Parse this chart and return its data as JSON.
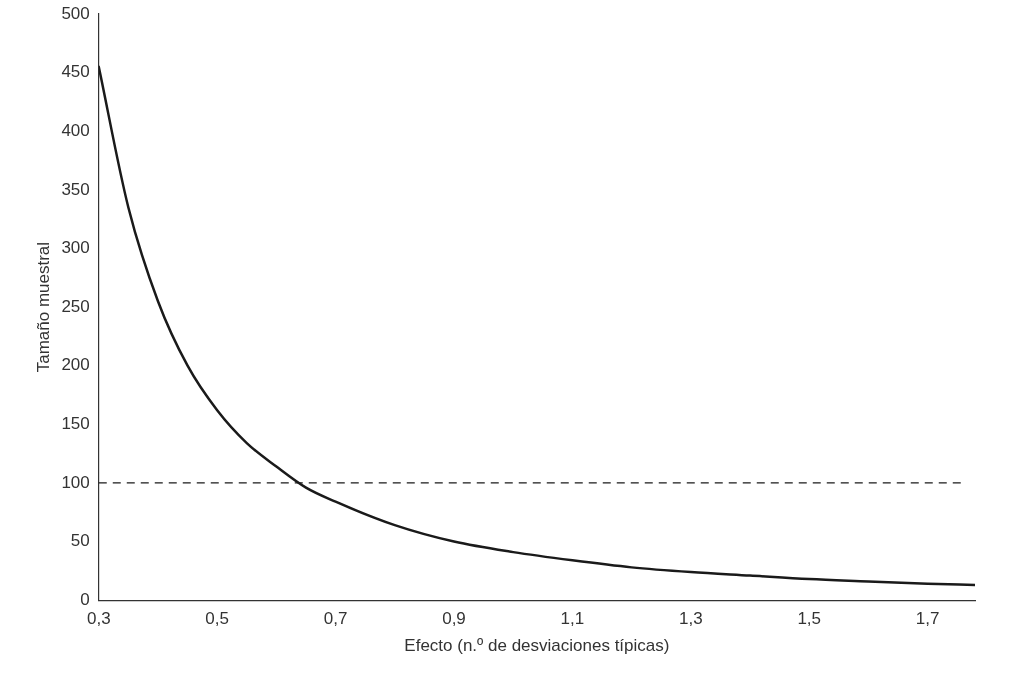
{
  "chart_data": {
    "type": "line",
    "xlabel": "Efecto (n.º de desviaciones típicas)",
    "ylabel": "Tamaño muestral",
    "x": [
      0.3,
      0.35,
      0.4,
      0.45,
      0.5,
      0.55,
      0.6,
      0.65,
      0.7,
      0.8,
      0.9,
      1.0,
      1.1,
      1.2,
      1.3,
      1.4,
      1.5,
      1.6,
      1.7,
      1.78
    ],
    "series": [
      {
        "color": "#1a1a1a",
        "values": [
          455,
          335,
          255,
          200,
          162,
          134,
          114,
          96,
          84,
          64,
          50,
          41,
          34,
          28,
          24,
          21,
          18,
          16,
          14,
          13
        ]
      }
    ],
    "xlim": [
      0.3,
      1.78
    ],
    "xticks": [
      {
        "value": 0.3,
        "label": "0,3"
      },
      {
        "value": 0.5,
        "label": "0,5"
      },
      {
        "value": 0.7,
        "label": "0,7"
      },
      {
        "value": 0.9,
        "label": "0,9"
      },
      {
        "value": 1.1,
        "label": "1,1"
      },
      {
        "value": 1.3,
        "label": "1,3"
      },
      {
        "value": 1.5,
        "label": "1,5"
      },
      {
        "value": 1.7,
        "label": "1,7"
      }
    ],
    "ylim": [
      0,
      500
    ],
    "yticks": [
      0,
      50,
      100,
      150,
      200,
      250,
      300,
      350,
      400,
      450,
      500
    ],
    "ref_lines": [
      {
        "axis": "y",
        "value": 100,
        "color": "#1a1a1a",
        "line_style": "dashed"
      }
    ],
    "grid": false,
    "legend": false,
    "marker": "none",
    "line_style": "solid"
  }
}
